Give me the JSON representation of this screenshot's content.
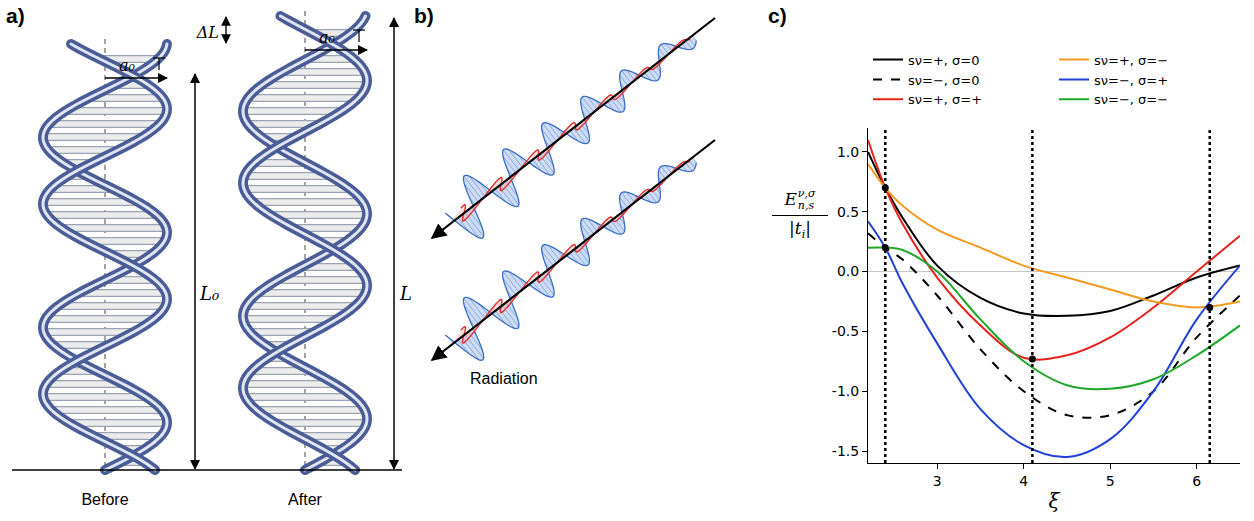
{
  "panel_labels": {
    "a": "a)",
    "b": "b)",
    "c": "c)"
  },
  "diagram_a": {
    "radius": "a₀",
    "length_change": "ΔL",
    "length_before": "L₀",
    "length_after": "L",
    "before": "Before",
    "after": "After"
  },
  "diagram_b": {
    "label": "Radiation"
  },
  "chart_data": {
    "type": "line",
    "x_label": "ξ",
    "y_label": {
      "base": "E",
      "sup": "ν,σ",
      "sub": "n,s",
      "denominator": "|t",
      "denominator_sub": "i",
      "denominator_end": "|"
    },
    "x": [
      2.2,
      2.4,
      2.6,
      3.0,
      3.5,
      4.0,
      4.5,
      5.0,
      5.5,
      6.0,
      6.5
    ],
    "series": [
      {
        "name": "sν=+, σ=0",
        "color": "#000000",
        "line_style": "solid",
        "values": [
          1.0,
          0.7,
          0.45,
          0.05,
          -0.22,
          -0.35,
          -0.37,
          -0.33,
          -0.2,
          -0.05,
          0.05
        ]
      },
      {
        "name": "sν=−, σ=0",
        "color": "#000000",
        "line_style": "dashed",
        "values": [
          0.32,
          0.2,
          0.1,
          -0.2,
          -0.65,
          -1.0,
          -1.2,
          -1.2,
          -1.0,
          -0.55,
          -0.2
        ]
      },
      {
        "name": "sν=+, σ=+",
        "color": "#e8221b",
        "line_style": "solid",
        "values": [
          1.1,
          0.7,
          0.4,
          -0.05,
          -0.45,
          -0.72,
          -0.7,
          -0.55,
          -0.3,
          0.0,
          0.3
        ]
      },
      {
        "name": "sν=+, σ=−",
        "color": "#f39a1f",
        "line_style": "solid",
        "values": [
          0.9,
          0.7,
          0.55,
          0.35,
          0.2,
          0.05,
          -0.05,
          -0.15,
          -0.25,
          -0.3,
          -0.25
        ]
      },
      {
        "name": "sν=−, σ=+",
        "color": "#2140d8",
        "line_style": "solid",
        "values": [
          0.42,
          0.2,
          -0.1,
          -0.6,
          -1.15,
          -1.45,
          -1.55,
          -1.4,
          -1.0,
          -0.4,
          0.05
        ]
      },
      {
        "name": "sν=−, σ=−",
        "color": "#1fa82a",
        "line_style": "solid",
        "values": [
          0.2,
          0.2,
          0.18,
          0.0,
          -0.4,
          -0.75,
          -0.95,
          -0.98,
          -0.9,
          -0.7,
          -0.45
        ]
      }
    ],
    "points": {
      "x": [
        2.4,
        2.4,
        4.1,
        6.15
      ],
      "y": [
        0.7,
        0.2,
        -0.73,
        -0.3
      ]
    },
    "vlines": [
      2.4,
      4.1,
      6.15
    ],
    "xlim": [
      2.2,
      6.5
    ],
    "ylim": [
      -1.6,
      1.2
    ],
    "xticks": [
      3,
      4,
      5,
      6
    ],
    "yticks": [
      {
        "value": 1.0,
        "label": "1.0"
      },
      {
        "value": 0.5,
        "label": "0.5"
      },
      {
        "value": 0,
        "label": "0.0"
      },
      {
        "value": -0.5,
        "label": "-0.5"
      },
      {
        "value": -1.0,
        "label": "-1.0"
      },
      {
        "value": -1.5,
        "label": "-1.5"
      }
    ],
    "grid": false,
    "legend": "top"
  }
}
